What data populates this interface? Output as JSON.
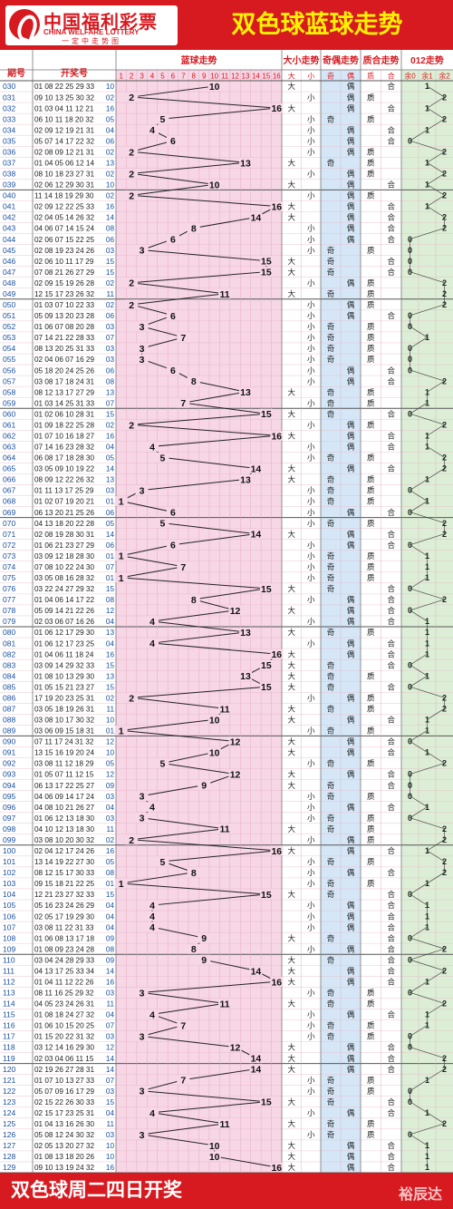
{
  "header": {
    "logo_cn": "中国福利彩票",
    "logo_en": "CHINA WELFARE LOTTERY",
    "logo_slogan": "一定中走势图",
    "title": "双色球蓝球走势"
  },
  "columns": {
    "period": "期号",
    "numbers": "开奖号",
    "blue_trend": "蓝球走势",
    "size_trend": "大小走势",
    "parity_trend": "奇偶走势",
    "prime_trend": "质合走势",
    "mod_trend": "012走势"
  },
  "subheaders": {
    "size": [
      "大",
      "小"
    ],
    "parity": [
      "奇",
      "偶"
    ],
    "prime": [
      "质",
      "合"
    ],
    "mod": [
      "余0",
      "余1",
      "余2"
    ]
  },
  "footer": {
    "text": "双色球周二四日开奖",
    "watermark": "裕辰达"
  },
  "colors": {
    "red": "#d71920",
    "yellow": "#fff200",
    "pink": "#f7d6e6",
    "blue": "#d5e7f7",
    "green": "#dcefd6"
  },
  "chart_data": {
    "type": "line",
    "title": "双色球蓝球走势",
    "ylim": [
      1,
      16
    ],
    "rows": [
      {
        "p": "030",
        "n": "01 08 22 25 29 33",
        "b": 10
      },
      {
        "p": "031",
        "n": "09 10 13 25 30 32",
        "b": 2
      },
      {
        "p": "032",
        "n": "01 03 04 11 12 21",
        "b": 16
      },
      {
        "p": "033",
        "n": "06 10 11 18 20 32",
        "b": 5
      },
      {
        "p": "034",
        "n": "02 09 12 19 21 31",
        "b": 4
      },
      {
        "p": "035",
        "n": "05 07 14 17 22 32",
        "b": 6
      },
      {
        "p": "036",
        "n": "02 08 09 12 21 31",
        "b": 2
      },
      {
        "p": "037",
        "n": "01 04 05 06 12 14",
        "b": 13
      },
      {
        "p": "038",
        "n": "08 10 18 23 27 31",
        "b": 2
      },
      {
        "p": "039",
        "n": "02 06 12 29 30 31",
        "b": 10
      },
      {
        "p": "040",
        "n": "11 14 18 19 29 30",
        "b": 2
      },
      {
        "p": "041",
        "n": "02 09 12 22 25 33",
        "b": 16
      },
      {
        "p": "042",
        "n": "02 04 05 14 26 32",
        "b": 14
      },
      {
        "p": "043",
        "n": "04 06 07 14 15 24",
        "b": 8
      },
      {
        "p": "044",
        "n": "02 06 07 15 22 25",
        "b": 6
      },
      {
        "p": "045",
        "n": "02 08 19 23 24 26",
        "b": 3
      },
      {
        "p": "046",
        "n": "02 06 10 11 17 29",
        "b": 15
      },
      {
        "p": "047",
        "n": "07 08 21 26 27 29",
        "b": 15
      },
      {
        "p": "048",
        "n": "02 09 15 19 26 28",
        "b": 2
      },
      {
        "p": "049",
        "n": "12 15 17 23 26 32",
        "b": 11
      },
      {
        "p": "050",
        "n": "01 03 07 10 22 33",
        "b": 2
      },
      {
        "p": "051",
        "n": "05 09 13 20 23 28",
        "b": 6
      },
      {
        "p": "052",
        "n": "01 06 07 08 20 28",
        "b": 3
      },
      {
        "p": "053",
        "n": "07 14 21 22 28 33",
        "b": 7
      },
      {
        "p": "054",
        "n": "08 13 20 25 31 33",
        "b": 3
      },
      {
        "p": "055",
        "n": "02 04 06 07 16 29",
        "b": 3
      },
      {
        "p": "056",
        "n": "05 18 20 24 25 26",
        "b": 6
      },
      {
        "p": "057",
        "n": "03 08 17 18 24 31",
        "b": 8
      },
      {
        "p": "058",
        "n": "08 12 13 17 27 29",
        "b": 13
      },
      {
        "p": "059",
        "n": "01 03 14 25 31 33",
        "b": 7
      },
      {
        "p": "060",
        "n": "01 02 06 10 28 31",
        "b": 15
      },
      {
        "p": "061",
        "n": "01 09 18 22 25 28",
        "b": 2
      },
      {
        "p": "062",
        "n": "01 07 10 16 18 27",
        "b": 16
      },
      {
        "p": "063",
        "n": "07 14 16 23 28 32",
        "b": 4
      },
      {
        "p": "064",
        "n": "06 08 17 18 28 30",
        "b": 5
      },
      {
        "p": "065",
        "n": "03 05 09 10 19 22",
        "b": 14
      },
      {
        "p": "066",
        "n": "08 09 12 22 26 32",
        "b": 13
      },
      {
        "p": "067",
        "n": "01 11 13 17 25 29",
        "b": 3
      },
      {
        "p": "068",
        "n": "01 02 07 19 20 21",
        "b": 1
      },
      {
        "p": "069",
        "n": "06 13 20 21 25 26",
        "b": 6
      },
      {
        "p": "070",
        "n": "04 13 18 20 22 28",
        "b": 5
      },
      {
        "p": "071",
        "n": "02 08 19 28 30 31",
        "b": 14
      },
      {
        "p": "072",
        "n": "01 06 21 23 27 29",
        "b": 6
      },
      {
        "p": "073",
        "n": "03 09 12 18 28 30",
        "b": 1
      },
      {
        "p": "074",
        "n": "07 08 10 22 24 30",
        "b": 7
      },
      {
        "p": "075",
        "n": "03 05 08 16 28 32",
        "b": 1
      },
      {
        "p": "076",
        "n": "03 22 24 27 29 32",
        "b": 15
      },
      {
        "p": "077",
        "n": "01 04 06 14 17 22",
        "b": 8
      },
      {
        "p": "078",
        "n": "05 09 14 21 22 26",
        "b": 12
      },
      {
        "p": "079",
        "n": "02 03 06 07 16 26",
        "b": 4
      },
      {
        "p": "080",
        "n": "01 06 12 17 29 30",
        "b": 13
      },
      {
        "p": "081",
        "n": "01 06 12 17 23 25",
        "b": 4
      },
      {
        "p": "082",
        "n": "01 04 06 11 18 24",
        "b": 16
      },
      {
        "p": "083",
        "n": "03 09 14 29 32 33",
        "b": 15
      },
      {
        "p": "084",
        "n": "01 08 10 13 29 30",
        "b": 13
      },
      {
        "p": "085",
        "n": "01 05 15 21 23 27",
        "b": 15
      },
      {
        "p": "086",
        "n": "17 19 20 23 25 31",
        "b": 2
      },
      {
        "p": "087",
        "n": "03 05 18 19 26 31",
        "b": 11
      },
      {
        "p": "088",
        "n": "03 08 10 17 30 32",
        "b": 10
      },
      {
        "p": "089",
        "n": "03 06 09 15 18 31",
        "b": 1
      },
      {
        "p": "090",
        "n": "07 11 17 24 31 32",
        "b": 12
      },
      {
        "p": "091",
        "n": "13 15 16 19 20 24",
        "b": 10
      },
      {
        "p": "092",
        "n": "03 08 11 12 18 29",
        "b": 5
      },
      {
        "p": "093",
        "n": "01 05 07 11 12 15",
        "b": 12
      },
      {
        "p": "094",
        "n": "06 13 17 22 25 27",
        "b": 9
      },
      {
        "p": "095",
        "n": "04 06 09 14 17 24",
        "b": 3
      },
      {
        "p": "096",
        "n": "04 08 10 21 26 27",
        "b": 4
      },
      {
        "p": "097",
        "n": "01 06 12 13 18 30",
        "b": 3
      },
      {
        "p": "098",
        "n": "04 10 12 13 18 30",
        "b": 11
      },
      {
        "p": "099",
        "n": "03 08 10 20 30 32",
        "b": 2
      },
      {
        "p": "100",
        "n": "02 04 12 17 24 26",
        "b": 16
      },
      {
        "p": "101",
        "n": "13 14 19 22 27 30",
        "b": 5
      },
      {
        "p": "102",
        "n": "08 12 15 17 30 33",
        "b": 8
      },
      {
        "p": "103",
        "n": "09 15 18 21 22 25",
        "b": 1
      },
      {
        "p": "104",
        "n": "12 21 23 27 32 33",
        "b": 15
      },
      {
        "p": "105",
        "n": "05 16 23 24 26 29",
        "b": 4
      },
      {
        "p": "106",
        "n": "02 05 17 19 29 30",
        "b": 4
      },
      {
        "p": "107",
        "n": "03 08 11 22 31 33",
        "b": 4
      },
      {
        "p": "108",
        "n": "01 06 08 13 17 18",
        "b": 9
      },
      {
        "p": "109",
        "n": "01 08 09 23 24 28",
        "b": 8
      },
      {
        "p": "110",
        "n": "03 04 24 28 29 33",
        "b": 9
      },
      {
        "p": "111",
        "n": "04 13 17 25 33 34",
        "b": 14
      },
      {
        "p": "112",
        "n": "01 04 11 12 22 26",
        "b": 16
      },
      {
        "p": "113",
        "n": "08 11 16 25 29 32",
        "b": 3
      },
      {
        "p": "114",
        "n": "04 05 23 24 26 31",
        "b": 11
      },
      {
        "p": "115",
        "n": "01 08 18 24 27 32",
        "b": 4
      },
      {
        "p": "116",
        "n": "01 06 10 15 20 25",
        "b": 7
      },
      {
        "p": "117",
        "n": "01 15 20 22 31 32",
        "b": 3
      },
      {
        "p": "118",
        "n": "03 12 14 16 29 30",
        "b": 12
      },
      {
        "p": "119",
        "n": "02 03 04 06 11 15",
        "b": 14
      },
      {
        "p": "120",
        "n": "02 19 26 27 28 31",
        "b": 14
      },
      {
        "p": "121",
        "n": "01 07 10 13 27 33",
        "b": 7
      },
      {
        "p": "122",
        "n": "05 07 09 16 17 29",
        "b": 3
      },
      {
        "p": "123",
        "n": "02 15 22 26 30 33",
        "b": 15
      },
      {
        "p": "124",
        "n": "02 15 17 23 25 31",
        "b": 4
      },
      {
        "p": "125",
        "n": "01 04 13 16 26 30",
        "b": 11
      },
      {
        "p": "126",
        "n": "05 08 12 24 30 32",
        "b": 3
      },
      {
        "p": "127",
        "n": "02 05 13 20 27 32",
        "b": 10
      },
      {
        "p": "128",
        "n": "01 08 13 18 20 26",
        "b": 10
      },
      {
        "p": "129",
        "n": "09 10 13 19 24 32",
        "b": 16
      }
    ]
  }
}
